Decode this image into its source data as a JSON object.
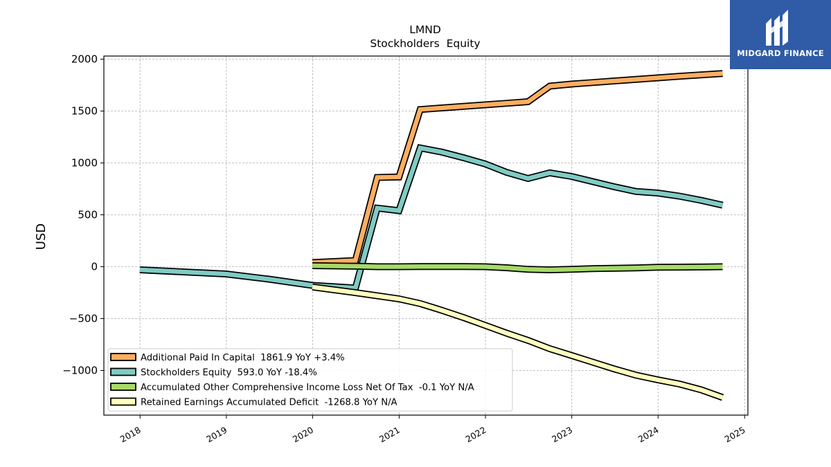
{
  "chart_data": {
    "type": "line",
    "title": "LMND",
    "subtitle": "Stockholders  Equity",
    "ylabel": "USD",
    "xlabel": "",
    "xlim": [
      "2017-08-01",
      "2025-01-15"
    ],
    "ylim": [
      -1430,
      2030
    ],
    "x_ticks": [
      "2018",
      "2019",
      "2020",
      "2021",
      "2022",
      "2023",
      "2024",
      "2025"
    ],
    "y_ticks": [
      2000,
      1500,
      1000,
      500,
      0,
      -500,
      -1000
    ],
    "y_tick_labels": [
      "2000",
      "1500",
      "1000",
      "500",
      "0",
      "−500",
      "−1000"
    ],
    "grid": true,
    "legend_position": "lower-left",
    "series": [
      {
        "name": "Additional Paid In Capital  1861.9 YoY +3.4%",
        "color": "#fdae61",
        "points": [
          [
            "2019-12-31",
            40
          ],
          [
            "2020-06-30",
            60
          ],
          [
            "2020-09-30",
            860
          ],
          [
            "2020-12-31",
            865
          ],
          [
            "2021-03-31",
            1515
          ],
          [
            "2021-06-30",
            1530
          ],
          [
            "2021-09-30",
            1545
          ],
          [
            "2021-12-31",
            1560
          ],
          [
            "2022-03-31",
            1575
          ],
          [
            "2022-06-30",
            1590
          ],
          [
            "2022-09-30",
            1740
          ],
          [
            "2022-12-31",
            1760
          ],
          [
            "2023-03-31",
            1775
          ],
          [
            "2023-06-30",
            1790
          ],
          [
            "2023-09-30",
            1805
          ],
          [
            "2023-12-31",
            1820
          ],
          [
            "2024-03-31",
            1835
          ],
          [
            "2024-06-30",
            1848
          ],
          [
            "2024-09-30",
            1862
          ]
        ]
      },
      {
        "name": "Stockholders Equity  593.0 YoY -18.4%",
        "color": "#80cbc4",
        "points": [
          [
            "2017-12-31",
            -30
          ],
          [
            "2018-12-31",
            -70
          ],
          [
            "2019-06-30",
            -120
          ],
          [
            "2019-12-31",
            -180
          ],
          [
            "2020-06-30",
            -205
          ],
          [
            "2020-09-30",
            565
          ],
          [
            "2020-12-31",
            540
          ],
          [
            "2021-03-31",
            1145
          ],
          [
            "2021-06-30",
            1105
          ],
          [
            "2021-09-30",
            1050
          ],
          [
            "2021-12-31",
            990
          ],
          [
            "2022-03-31",
            910
          ],
          [
            "2022-06-30",
            850
          ],
          [
            "2022-09-30",
            905
          ],
          [
            "2022-12-31",
            870
          ],
          [
            "2023-03-31",
            820
          ],
          [
            "2023-06-30",
            770
          ],
          [
            "2023-09-30",
            725
          ],
          [
            "2023-12-31",
            710
          ],
          [
            "2024-03-31",
            680
          ],
          [
            "2024-06-30",
            640
          ],
          [
            "2024-09-30",
            593
          ]
        ]
      },
      {
        "name": "Accumulated Other Comprehensive Income Loss Net Of Tax  -0.1 YoY N/A",
        "color": "#a6d96a",
        "points": [
          [
            "2019-12-31",
            10
          ],
          [
            "2020-06-30",
            5
          ],
          [
            "2020-09-30",
            0
          ],
          [
            "2020-12-31",
            0
          ],
          [
            "2021-03-31",
            2
          ],
          [
            "2021-06-30",
            2
          ],
          [
            "2021-09-30",
            2
          ],
          [
            "2021-12-31",
            0
          ],
          [
            "2022-03-31",
            -10
          ],
          [
            "2022-06-30",
            -25
          ],
          [
            "2022-09-30",
            -30
          ],
          [
            "2022-12-31",
            -25
          ],
          [
            "2023-03-31",
            -18
          ],
          [
            "2023-06-30",
            -15
          ],
          [
            "2023-09-30",
            -12
          ],
          [
            "2023-12-31",
            -5
          ],
          [
            "2024-03-31",
            -4
          ],
          [
            "2024-06-30",
            -3
          ],
          [
            "2024-09-30",
            0
          ]
        ]
      },
      {
        "name": "Retained Earnings Accumulated Deficit  -1268.8 YoY N/A",
        "color": "#ffffbf",
        "points": [
          [
            "2019-12-31",
            -195
          ],
          [
            "2020-06-30",
            -250
          ],
          [
            "2020-09-30",
            -280
          ],
          [
            "2020-12-31",
            -310
          ],
          [
            "2021-03-31",
            -355
          ],
          [
            "2021-06-30",
            -420
          ],
          [
            "2021-09-30",
            -490
          ],
          [
            "2021-12-31",
            -565
          ],
          [
            "2022-03-31",
            -640
          ],
          [
            "2022-06-30",
            -710
          ],
          [
            "2022-09-30",
            -790
          ],
          [
            "2022-12-31",
            -855
          ],
          [
            "2023-03-31",
            -920
          ],
          [
            "2023-06-30",
            -985
          ],
          [
            "2023-09-30",
            -1045
          ],
          [
            "2023-12-31",
            -1090
          ],
          [
            "2024-03-31",
            -1130
          ],
          [
            "2024-06-30",
            -1185
          ],
          [
            "2024-09-30",
            -1260
          ]
        ]
      }
    ]
  },
  "branding": {
    "logo_text": "MIDGARD FINANCE",
    "bg_color": "#2f5ba7"
  }
}
